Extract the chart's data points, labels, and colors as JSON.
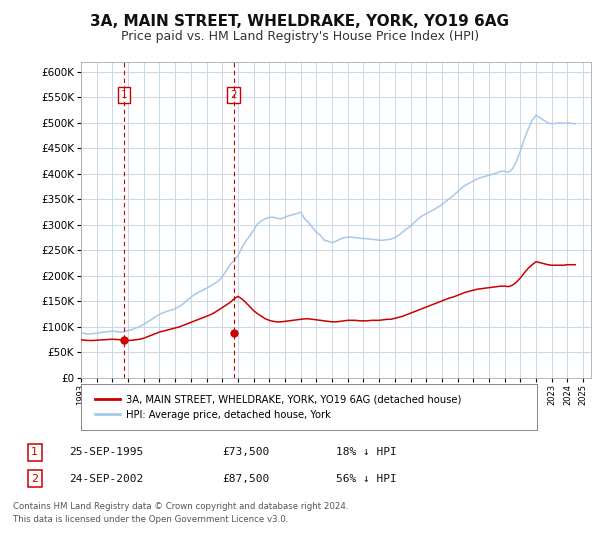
{
  "title": "3A, MAIN STREET, WHELDRAKE, YORK, YO19 6AG",
  "subtitle": "Price paid vs. HM Land Registry's House Price Index (HPI)",
  "title_fontsize": 11,
  "subtitle_fontsize": 9,
  "background_color": "#ffffff",
  "plot_bg_color": "#ffffff",
  "grid_color": "#c8d8e8",
  "hpi_color": "#a8c8e8",
  "price_color": "#cc0000",
  "ylim": [
    0,
    620000
  ],
  "yticks": [
    0,
    50000,
    100000,
    150000,
    200000,
    250000,
    300000,
    350000,
    400000,
    450000,
    500000,
    550000,
    600000
  ],
  "xlim_start": 1993.0,
  "xlim_end": 2025.5,
  "sale1_x": 1995.73,
  "sale1_y": 73500,
  "sale2_x": 2002.73,
  "sale2_y": 87500,
  "legend_label_price": "3A, MAIN STREET, WHELDRAKE, YORK, YO19 6AG (detached house)",
  "legend_label_hpi": "HPI: Average price, detached house, York",
  "annotation1_label": "1",
  "annotation2_label": "2",
  "table_rows": [
    {
      "num": "1",
      "date": "25-SEP-1995",
      "price": "£73,500",
      "pct": "18% ↓ HPI"
    },
    {
      "num": "2",
      "date": "24-SEP-2002",
      "price": "£87,500",
      "pct": "56% ↓ HPI"
    }
  ],
  "footer_line1": "Contains HM Land Registry data © Crown copyright and database right 2024.",
  "footer_line2": "This data is licensed under the Open Government Licence v3.0.",
  "hpi_x": [
    1993.0,
    1993.25,
    1993.5,
    1993.75,
    1994.0,
    1994.25,
    1994.5,
    1994.75,
    1995.0,
    1995.25,
    1995.5,
    1995.75,
    1996.0,
    1996.25,
    1996.5,
    1996.75,
    1997.0,
    1997.25,
    1997.5,
    1997.75,
    1998.0,
    1998.25,
    1998.5,
    1998.75,
    1999.0,
    1999.25,
    1999.5,
    1999.75,
    2000.0,
    2000.25,
    2000.5,
    2000.75,
    2001.0,
    2001.25,
    2001.5,
    2001.75,
    2002.0,
    2002.25,
    2002.5,
    2002.75,
    2003.0,
    2003.25,
    2003.5,
    2003.75,
    2004.0,
    2004.25,
    2004.5,
    2004.75,
    2005.0,
    2005.25,
    2005.5,
    2005.75,
    2006.0,
    2006.25,
    2006.5,
    2006.75,
    2007.0,
    2007.25,
    2007.5,
    2007.75,
    2008.0,
    2008.25,
    2008.5,
    2008.75,
    2009.0,
    2009.25,
    2009.5,
    2009.75,
    2010.0,
    2010.25,
    2010.5,
    2010.75,
    2011.0,
    2011.25,
    2011.5,
    2011.75,
    2012.0,
    2012.25,
    2012.5,
    2012.75,
    2013.0,
    2013.25,
    2013.5,
    2013.75,
    2014.0,
    2014.25,
    2014.5,
    2014.75,
    2015.0,
    2015.25,
    2015.5,
    2015.75,
    2016.0,
    2016.25,
    2016.5,
    2016.75,
    2017.0,
    2017.25,
    2017.5,
    2017.75,
    2018.0,
    2018.25,
    2018.5,
    2018.75,
    2019.0,
    2019.25,
    2019.5,
    2019.75,
    2020.0,
    2020.25,
    2020.5,
    2020.75,
    2021.0,
    2021.25,
    2021.5,
    2021.75,
    2022.0,
    2022.25,
    2022.5,
    2022.75,
    2023.0,
    2023.25,
    2023.5,
    2023.75,
    2024.0,
    2024.25,
    2024.5
  ],
  "hpi_y": [
    89000,
    87000,
    86000,
    87000,
    88000,
    89000,
    90000,
    91000,
    92000,
    91000,
    90000,
    91000,
    93000,
    95000,
    98000,
    101000,
    105000,
    110000,
    115000,
    120000,
    125000,
    128000,
    131000,
    133000,
    136000,
    140000,
    145000,
    152000,
    158000,
    164000,
    168000,
    172000,
    176000,
    180000,
    185000,
    190000,
    198000,
    210000,
    222000,
    230000,
    240000,
    255000,
    268000,
    278000,
    290000,
    302000,
    308000,
    312000,
    315000,
    315000,
    313000,
    312000,
    315000,
    318000,
    320000,
    322000,
    325000,
    312000,
    305000,
    295000,
    285000,
    280000,
    270000,
    268000,
    265000,
    268000,
    272000,
    275000,
    276000,
    276000,
    275000,
    274000,
    273000,
    273000,
    272000,
    271000,
    270000,
    270000,
    271000,
    272000,
    275000,
    280000,
    286000,
    292000,
    298000,
    305000,
    312000,
    318000,
    322000,
    326000,
    330000,
    335000,
    340000,
    346000,
    352000,
    358000,
    365000,
    372000,
    378000,
    382000,
    386000,
    390000,
    393000,
    395000,
    397000,
    400000,
    402000,
    405000,
    405000,
    403000,
    410000,
    425000,
    445000,
    468000,
    488000,
    505000,
    515000,
    510000,
    505000,
    500000,
    498000,
    499000,
    500000,
    499000,
    500000,
    499000,
    498000
  ],
  "price_x": [
    1993.0,
    1993.25,
    1993.5,
    1993.75,
    1994.0,
    1994.25,
    1994.5,
    1994.75,
    1995.0,
    1995.25,
    1995.5,
    1995.75,
    1996.0,
    1996.25,
    1996.5,
    1996.75,
    1997.0,
    1997.25,
    1997.5,
    1997.75,
    1998.0,
    1998.25,
    1998.5,
    1998.75,
    1999.0,
    1999.25,
    1999.5,
    1999.75,
    2000.0,
    2000.25,
    2000.5,
    2000.75,
    2001.0,
    2001.25,
    2001.5,
    2001.75,
    2002.0,
    2002.25,
    2002.5,
    2002.75,
    2003.0,
    2003.25,
    2003.5,
    2003.75,
    2004.0,
    2004.25,
    2004.5,
    2004.75,
    2005.0,
    2005.25,
    2005.5,
    2005.75,
    2006.0,
    2006.25,
    2006.5,
    2006.75,
    2007.0,
    2007.25,
    2007.5,
    2007.75,
    2008.0,
    2008.25,
    2008.5,
    2008.75,
    2009.0,
    2009.25,
    2009.5,
    2009.75,
    2010.0,
    2010.25,
    2010.5,
    2010.75,
    2011.0,
    2011.25,
    2011.5,
    2011.75,
    2012.0,
    2012.25,
    2012.5,
    2012.75,
    2013.0,
    2013.25,
    2013.5,
    2013.75,
    2014.0,
    2014.25,
    2014.5,
    2014.75,
    2015.0,
    2015.25,
    2015.5,
    2015.75,
    2016.0,
    2016.25,
    2016.5,
    2016.75,
    2017.0,
    2017.25,
    2017.5,
    2017.75,
    2018.0,
    2018.25,
    2018.5,
    2018.75,
    2019.0,
    2019.25,
    2019.5,
    2019.75,
    2020.0,
    2020.25,
    2020.5,
    2020.75,
    2021.0,
    2021.25,
    2021.5,
    2021.75,
    2022.0,
    2022.25,
    2022.5,
    2022.75,
    2023.0,
    2023.25,
    2023.5,
    2023.75,
    2024.0,
    2024.25,
    2024.5
  ],
  "price_y": [
    75000,
    74000,
    73500,
    73500,
    74000,
    74500,
    75000,
    75500,
    76000,
    75500,
    75000,
    73500,
    73500,
    74000,
    75000,
    76000,
    78000,
    81000,
    84000,
    87000,
    90000,
    92000,
    94000,
    96000,
    98000,
    100000,
    103000,
    106000,
    109000,
    112000,
    115000,
    118000,
    121000,
    124000,
    128000,
    133000,
    138000,
    143000,
    148000,
    155000,
    160000,
    155000,
    148000,
    140000,
    132000,
    126000,
    121000,
    116000,
    113000,
    111000,
    110000,
    110000,
    111000,
    112000,
    113000,
    114000,
    115000,
    116000,
    116000,
    115000,
    114000,
    113000,
    112000,
    111000,
    110000,
    110000,
    111000,
    112000,
    113000,
    113000,
    113000,
    112000,
    112000,
    112000,
    113000,
    113000,
    113000,
    114000,
    115000,
    115000,
    117000,
    119000,
    121000,
    124000,
    127000,
    130000,
    133000,
    136000,
    139000,
    142000,
    145000,
    148000,
    151000,
    154000,
    157000,
    159000,
    162000,
    165000,
    168000,
    170000,
    172000,
    174000,
    175000,
    176000,
    177000,
    178000,
    179000,
    180000,
    180000,
    179000,
    182000,
    188000,
    196000,
    206000,
    215000,
    222000,
    228000,
    226000,
    224000,
    222000,
    221000,
    221000,
    221000,
    221000,
    222000,
    222000,
    222000
  ]
}
